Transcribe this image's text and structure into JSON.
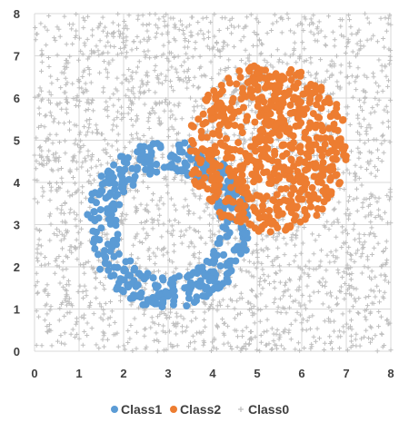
{
  "chart_data": {
    "type": "scatter",
    "title": "",
    "xlabel": "",
    "ylabel": "",
    "xlim": [
      0,
      8
    ],
    "ylim": [
      0,
      8
    ],
    "xticks": [
      "0",
      "1",
      "2",
      "3",
      "4",
      "5",
      "6",
      "7",
      "8"
    ],
    "yticks": [
      "0",
      "1",
      "2",
      "3",
      "4",
      "5",
      "6",
      "7",
      "8"
    ],
    "grid": true,
    "legend_position": "bottom",
    "series": [
      {
        "name": "Class1",
        "color": "#5B9BD5",
        "marker": "circle",
        "shape": "ring",
        "center": [
          3.0,
          3.0
        ],
        "inner_radius": 1.25,
        "outer_radius": 2.0,
        "approx_point_count": 420
      },
      {
        "name": "Class2",
        "color": "#ED7D31",
        "marker": "circle",
        "shape": "disc",
        "center": [
          5.25,
          4.8
        ],
        "radius": 2.0,
        "approx_point_count": 650
      },
      {
        "name": "Class0",
        "color": "#BFBFBF",
        "marker": "plus",
        "shape": "uniform-background",
        "x_range": [
          0,
          8
        ],
        "y_range": [
          0,
          8
        ],
        "approx_point_count": 2600
      }
    ]
  }
}
